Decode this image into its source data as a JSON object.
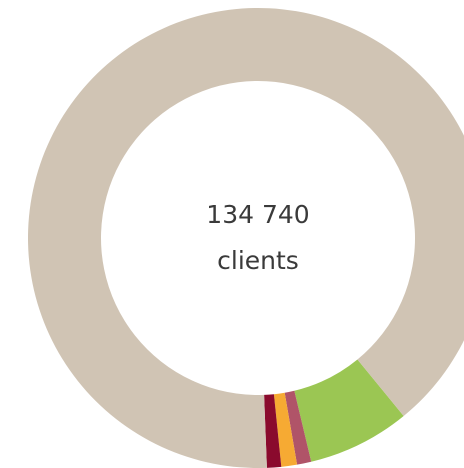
{
  "chart_data": {
    "type": "donut",
    "center_text": [
      "134 740",
      "clients"
    ],
    "values": [
      7.2,
      1,
      1.1,
      1,
      89.7
    ],
    "colors": [
      "#9bc653",
      "#b05468",
      "#f6aa33",
      "#8a0a2d",
      "#d0c4b4"
    ],
    "start_angle": 140.7
  }
}
